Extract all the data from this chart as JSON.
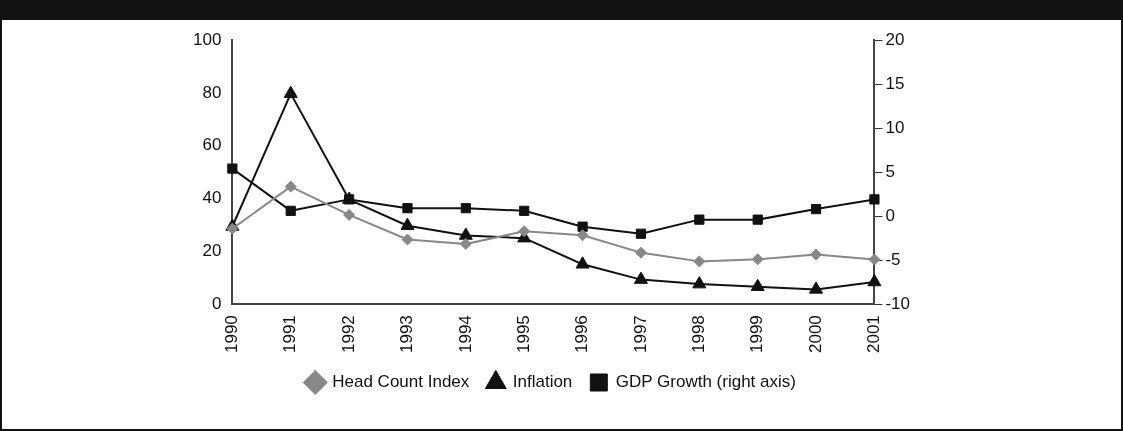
{
  "chart_data": {
    "type": "line",
    "categories": [
      "1990",
      "1991",
      "1992",
      "1993",
      "1994",
      "1995",
      "1996",
      "1997",
      "1998",
      "1999",
      "2000",
      "2001"
    ],
    "series": [
      {
        "name": "Head Count Index",
        "color": "#888888",
        "marker": "diamond",
        "values": [
          28.6,
          44.5,
          33.8,
          24.5,
          22.8,
          27.6,
          26.1,
          19.5,
          16.2,
          17.0,
          18.8,
          16.9
        ]
      },
      {
        "name": "Inflation",
        "color": "#111111",
        "marker": "triangle",
        "values": [
          29.4,
          79.7,
          39.6,
          29.7,
          26,
          25,
          15.1,
          9.3,
          7.6,
          6.6,
          5.6,
          8.4
        ]
      },
      {
        "name": "GDP Growth (right axis)",
        "color": "#111111",
        "marker": "square",
        "axis": "y2",
        "values": [
          5.4,
          0.6,
          1.9,
          0.9,
          0.9,
          0.6,
          -1.2,
          -2.0,
          -0.4,
          -0.4,
          0.8,
          1.9
        ]
      }
    ],
    "ylim": [
      0,
      100
    ],
    "yticks": [
      0,
      20,
      40,
      60,
      80,
      100
    ],
    "y2lim": [
      -10,
      20
    ],
    "y2ticks": [
      -10,
      -5,
      0,
      5,
      10,
      15,
      20
    ],
    "grid": false,
    "legend": "bottom",
    "line_style": "solid"
  }
}
